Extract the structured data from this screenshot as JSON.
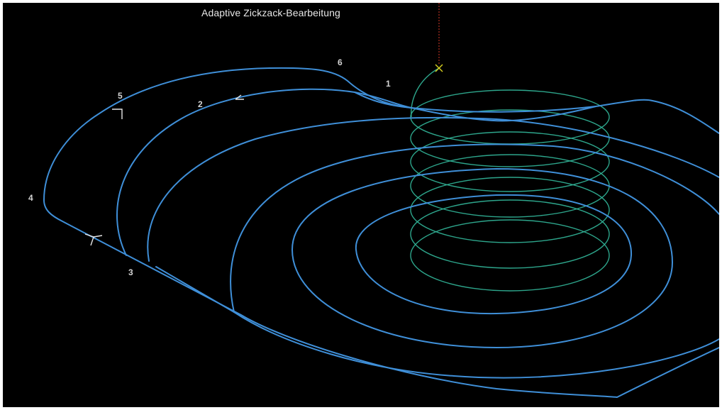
{
  "title": "Adaptive Zickzack-Bearbeitung",
  "labels": [
    "1",
    "2",
    "3",
    "4",
    "5",
    "6"
  ],
  "colors": {
    "background": "#000000",
    "toolpath": "#3f8fd8",
    "helix": "#2fae92",
    "start_marker": "#d8d020",
    "axis_line": "#b03020"
  },
  "icons": [
    "start-cross-icon",
    "direction-arrow-icon"
  ]
}
